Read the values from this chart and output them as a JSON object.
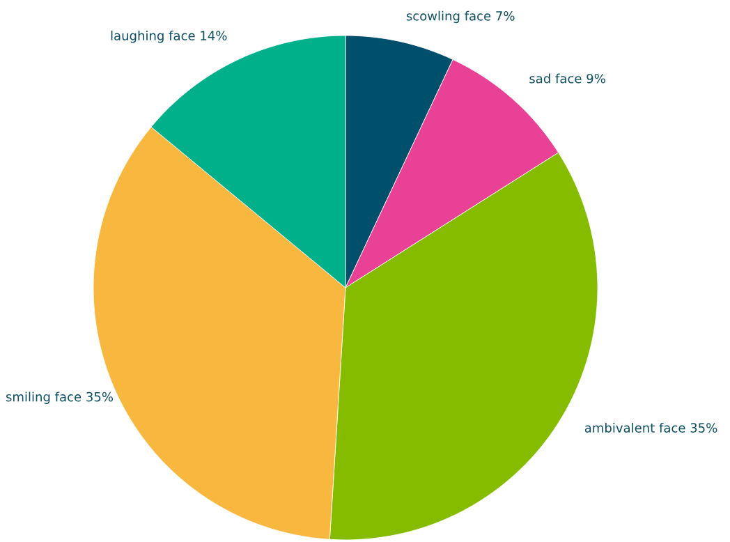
{
  "chart_data": {
    "type": "pie",
    "categories": [
      "scowling face",
      "sad face",
      "ambivalent face",
      "smiling face",
      "laughing face"
    ],
    "values": [
      7,
      9,
      35,
      35,
      14
    ],
    "value_labels": [
      "7%",
      "9%",
      "35%",
      "35%",
      "14%"
    ],
    "colors": [
      "#00506b",
      "#e84196",
      "#86bc00",
      "#f8b73e",
      "#00b08a"
    ],
    "legend": false
  }
}
